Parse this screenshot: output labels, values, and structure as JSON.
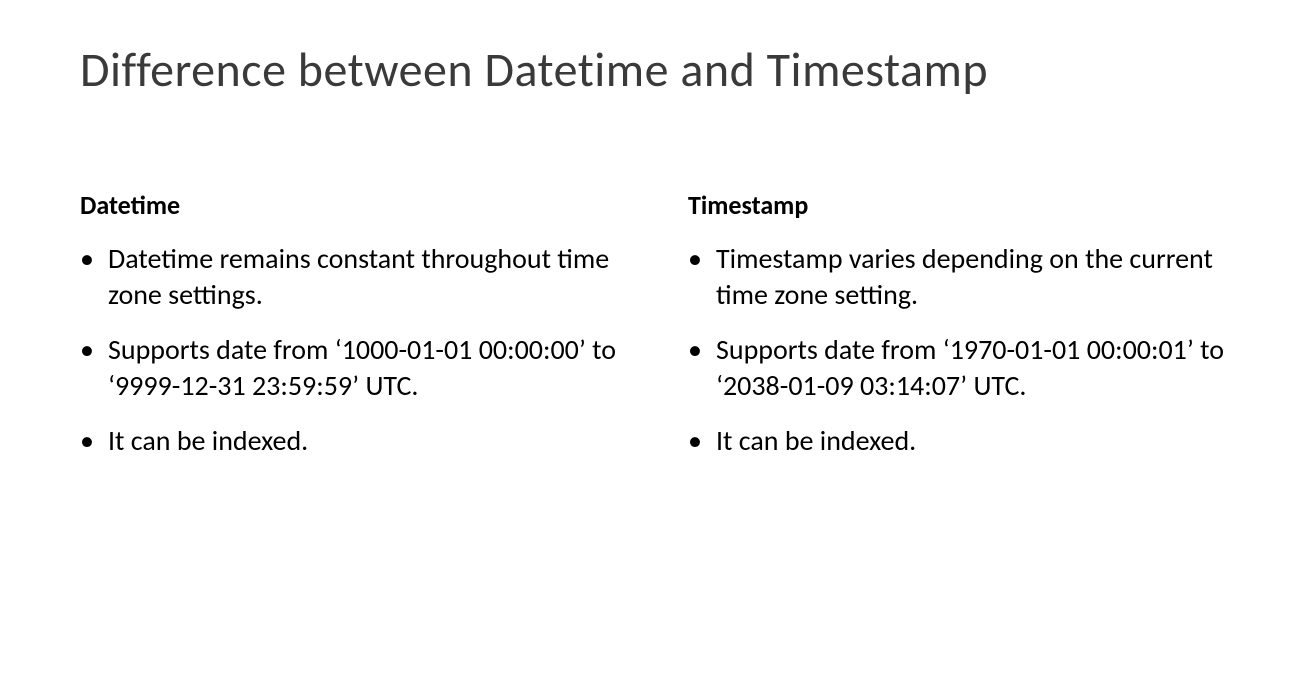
{
  "title": "Difference between Datetime and Timestamp",
  "columns": {
    "left": {
      "heading": "Datetime",
      "items": [
        "Datetime remains constant throughout time zone settings.",
        "Supports date from ‘1000-01-01 00:00:00’ to ‘9999-12-31 23:59:59’ UTC.",
        "It can be indexed."
      ]
    },
    "right": {
      "heading": "Timestamp",
      "items": [
        "Timestamp varies depending on the current time zone setting.",
        "Supports date from ‘1970-01-01 00:00:01’ to ‘2038-01-09 03:14:07’ UTC.",
        "It can be indexed."
      ]
    }
  },
  "styling": {
    "background_color": "#ffffff",
    "text_color": "#000000",
    "title_color": "#3a3a3a",
    "title_fontsize": 48,
    "heading_fontsize": 26,
    "body_fontsize": 28,
    "font_family": "Calibri"
  }
}
